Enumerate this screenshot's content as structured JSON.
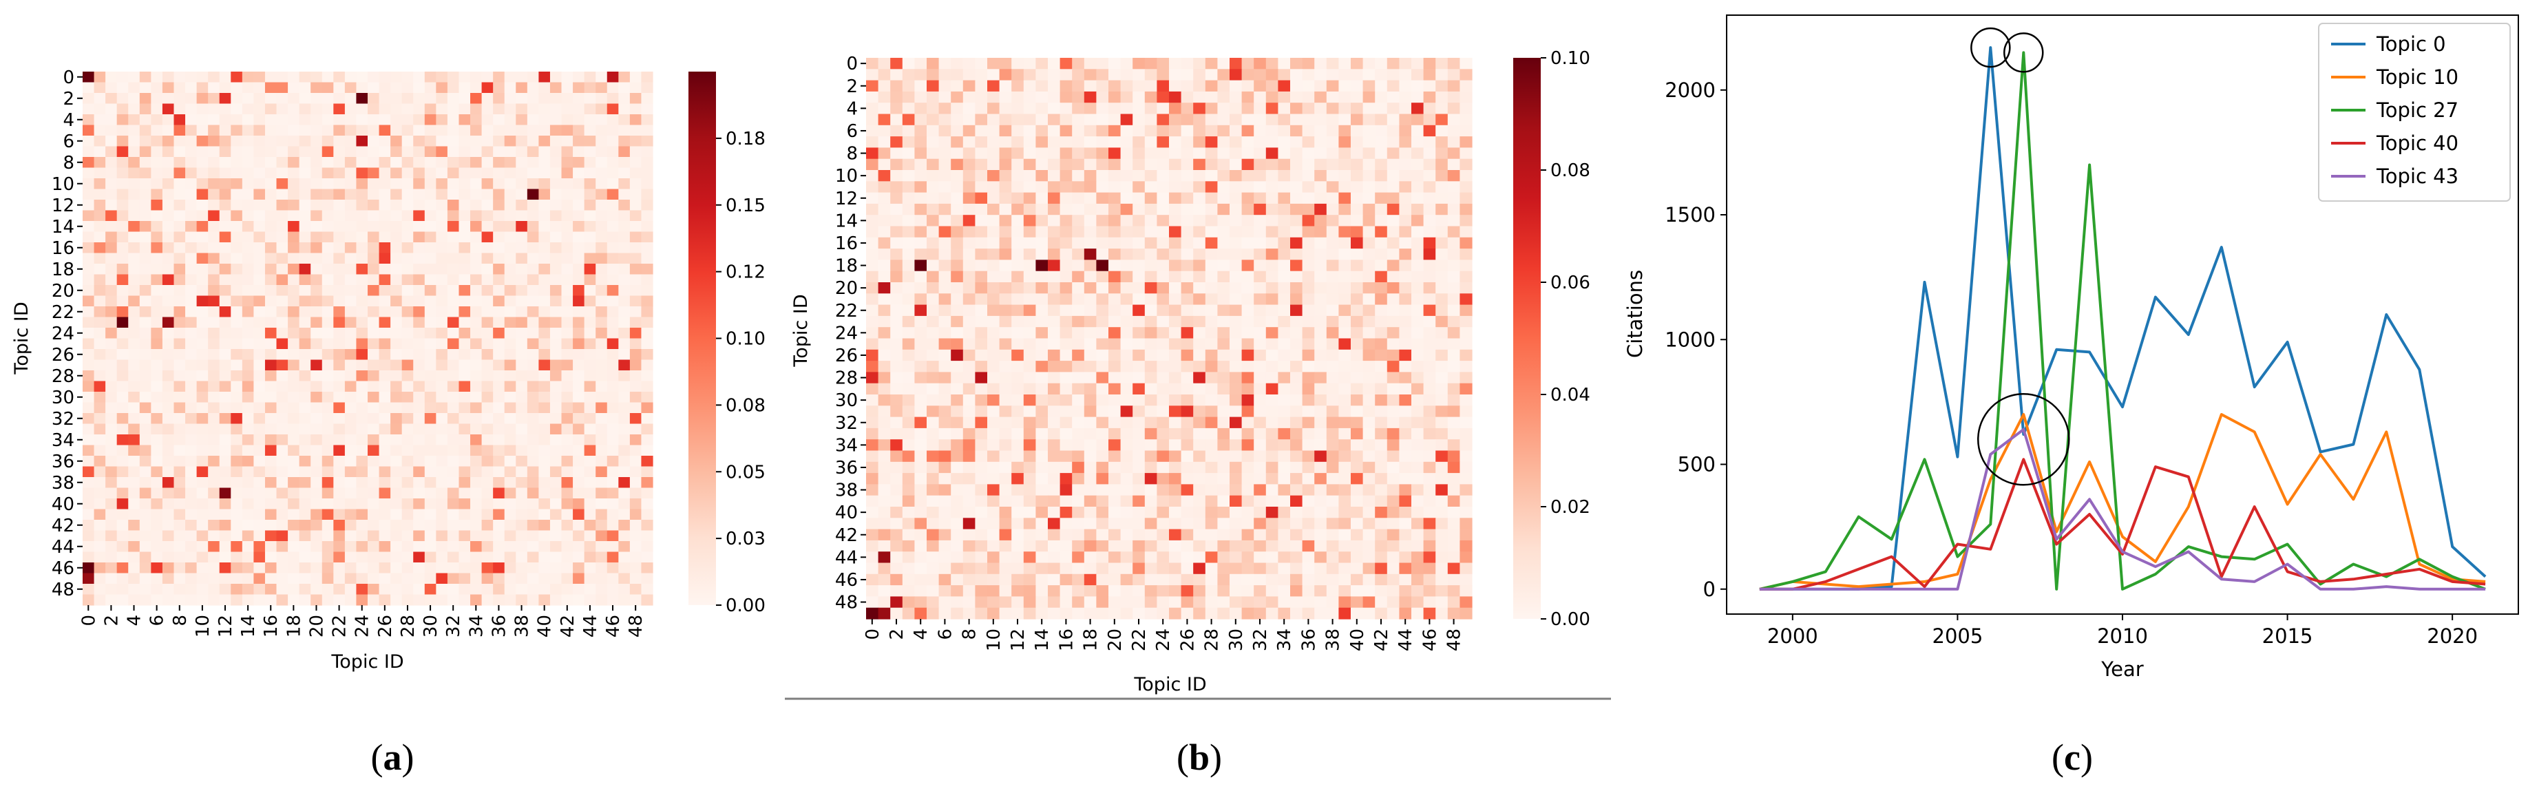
{
  "colors": {
    "heat_low": "#fff5f0",
    "heat_mid": "#fb6a4a",
    "heat_high": "#67000d",
    "axis": "#000000",
    "divider": "#7f7f7f"
  },
  "panel_a": {
    "caption_open": "(",
    "caption_letter": "a",
    "caption_close": ")",
    "xlabel": "Topic ID",
    "ylabel": "Topic ID",
    "ytick_labels": [
      "0",
      "2",
      "4",
      "6",
      "8",
      "10",
      "12",
      "14",
      "16",
      "18",
      "20",
      "22",
      "24",
      "26",
      "28",
      "30",
      "32",
      "34",
      "36",
      "38",
      "40",
      "42",
      "44",
      "46",
      "48"
    ],
    "xtick_labels": [
      "0",
      "2",
      "4",
      "6",
      "8",
      "10",
      "12",
      "14",
      "16",
      "18",
      "20",
      "22",
      "24",
      "26",
      "28",
      "30",
      "32",
      "34",
      "36",
      "38",
      "40",
      "42",
      "44",
      "46",
      "48"
    ],
    "colorbar_ticks": [
      "0.00",
      "0.03",
      "0.05",
      "0.08",
      "0.10",
      "0.12",
      "0.15",
      "0.18"
    ],
    "colorbar_values": [
      0.0,
      0.025,
      0.05,
      0.075,
      0.1,
      0.125,
      0.15,
      0.175
    ],
    "vmax": 0.2
  },
  "panel_b": {
    "caption_open": "(",
    "caption_letter": "b",
    "caption_close": ")",
    "xlabel": "Topic ID",
    "ylabel": "Topic ID",
    "ytick_labels": [
      "0",
      "2",
      "4",
      "6",
      "8",
      "10",
      "12",
      "14",
      "16",
      "18",
      "20",
      "22",
      "24",
      "26",
      "28",
      "30",
      "32",
      "34",
      "36",
      "38",
      "40",
      "42",
      "44",
      "46",
      "48"
    ],
    "xtick_labels": [
      "0",
      "2",
      "4",
      "6",
      "8",
      "10",
      "12",
      "14",
      "16",
      "18",
      "20",
      "22",
      "24",
      "26",
      "28",
      "30",
      "32",
      "34",
      "36",
      "38",
      "40",
      "42",
      "44",
      "46",
      "48"
    ],
    "colorbar_ticks": [
      "0.00",
      "0.02",
      "0.04",
      "0.06",
      "0.08",
      "0.10"
    ],
    "colorbar_values": [
      0.0,
      0.02,
      0.04,
      0.06,
      0.08,
      0.1
    ],
    "vmax": 0.1
  },
  "chart_data": [
    {
      "type": "heatmap",
      "panel": "a",
      "title": "",
      "xlabel": "Topic ID",
      "ylabel": "Topic ID",
      "rows": 50,
      "cols": 50,
      "vmin": 0.0,
      "vmax": 0.2,
      "colormap": "Reds",
      "highlight_cells": [
        {
          "row": 0,
          "col": 0,
          "value": 0.2
        },
        {
          "row": 0,
          "col": 46,
          "value": 0.16
        },
        {
          "row": 1,
          "col": 16,
          "value": 0.08
        },
        {
          "row": 1,
          "col": 17,
          "value": 0.08
        },
        {
          "row": 2,
          "col": 24,
          "value": 0.2
        },
        {
          "row": 6,
          "col": 24,
          "value": 0.16
        },
        {
          "row": 7,
          "col": 21,
          "value": 0.1
        },
        {
          "row": 11,
          "col": 39,
          "value": 0.2
        },
        {
          "row": 15,
          "col": 35,
          "value": 0.12
        },
        {
          "row": 16,
          "col": 1,
          "value": 0.08
        },
        {
          "row": 18,
          "col": 19,
          "value": 0.14
        },
        {
          "row": 21,
          "col": 11,
          "value": 0.13
        },
        {
          "row": 22,
          "col": 12,
          "value": 0.13
        },
        {
          "row": 23,
          "col": 3,
          "value": 0.2
        },
        {
          "row": 23,
          "col": 7,
          "value": 0.18
        },
        {
          "row": 35,
          "col": 16,
          "value": 0.12
        },
        {
          "row": 39,
          "col": 12,
          "value": 0.19
        },
        {
          "row": 46,
          "col": 0,
          "value": 0.2
        },
        {
          "row": 47,
          "col": 0,
          "value": 0.18
        }
      ]
    },
    {
      "type": "heatmap",
      "panel": "b",
      "title": "",
      "xlabel": "Topic ID",
      "ylabel": "Topic ID",
      "rows": 50,
      "cols": 50,
      "vmin": 0.0,
      "vmax": 0.1,
      "colormap": "Reds",
      "highlight_cells": [
        {
          "row": 18,
          "col": 4,
          "value": 0.1
        },
        {
          "row": 18,
          "col": 14,
          "value": 0.1
        },
        {
          "row": 18,
          "col": 19,
          "value": 0.1
        },
        {
          "row": 17,
          "col": 18,
          "value": 0.09
        },
        {
          "row": 20,
          "col": 1,
          "value": 0.08
        },
        {
          "row": 49,
          "col": 0,
          "value": 0.1
        },
        {
          "row": 49,
          "col": 1,
          "value": 0.09
        },
        {
          "row": 48,
          "col": 2,
          "value": 0.08
        },
        {
          "row": 26,
          "col": 7,
          "value": 0.08
        },
        {
          "row": 28,
          "col": 9,
          "value": 0.08
        },
        {
          "row": 28,
          "col": 27,
          "value": 0.07
        },
        {
          "row": 35,
          "col": 37,
          "value": 0.07
        },
        {
          "row": 41,
          "col": 8,
          "value": 0.08
        },
        {
          "row": 44,
          "col": 1,
          "value": 0.09
        }
      ]
    },
    {
      "type": "line",
      "panel": "c",
      "title": "",
      "xlabel": "Year",
      "ylabel": "Citations",
      "xlim": [
        1998,
        2022
      ],
      "ylim": [
        -100,
        2300
      ],
      "xticks": [
        2000,
        2005,
        2010,
        2015,
        2020
      ],
      "yticks": [
        0,
        500,
        1000,
        1500,
        2000
      ],
      "legend_position": "top-right",
      "grid": false,
      "x": [
        1999,
        2000,
        2001,
        2002,
        2003,
        2004,
        2005,
        2006,
        2007,
        2008,
        2009,
        2010,
        2011,
        2012,
        2013,
        2014,
        2015,
        2016,
        2017,
        2018,
        2019,
        2020,
        2021
      ],
      "series": [
        {
          "name": "Topic 0",
          "color": "#1f77b4",
          "values": [
            0,
            0,
            0,
            0,
            10,
            1230,
            530,
            2170,
            620,
            960,
            950,
            730,
            1170,
            1020,
            1370,
            810,
            990,
            550,
            580,
            1100,
            880,
            170,
            50
          ]
        },
        {
          "name": "Topic 10",
          "color": "#ff7f0e",
          "values": [
            0,
            30,
            20,
            10,
            20,
            30,
            60,
            440,
            700,
            230,
            510,
            210,
            110,
            330,
            700,
            630,
            340,
            540,
            360,
            630,
            100,
            40,
            30
          ]
        },
        {
          "name": "Topic 27",
          "color": "#2ca02c",
          "values": [
            0,
            30,
            70,
            290,
            200,
            520,
            130,
            260,
            2150,
            0,
            1700,
            0,
            60,
            170,
            130,
            120,
            180,
            20,
            100,
            50,
            120,
            50,
            0
          ]
        },
        {
          "name": "Topic 40",
          "color": "#d62728",
          "values": [
            0,
            0,
            30,
            80,
            130,
            10,
            180,
            160,
            520,
            180,
            300,
            140,
            490,
            450,
            50,
            330,
            70,
            30,
            40,
            60,
            80,
            30,
            20
          ]
        },
        {
          "name": "Topic 43",
          "color": "#9467bd",
          "values": [
            0,
            0,
            0,
            0,
            0,
            0,
            0,
            540,
            640,
            200,
            360,
            150,
            90,
            150,
            40,
            30,
            100,
            0,
            0,
            10,
            0,
            0,
            0
          ]
        }
      ],
      "annotations": [
        {
          "shape": "circle",
          "year": 2006,
          "citations": 2170
        },
        {
          "shape": "circle",
          "year": 2007,
          "citations": 2150
        },
        {
          "shape": "circle",
          "year": 2007,
          "citations": 600
        }
      ]
    }
  ],
  "panel_c": {
    "caption_open": "(",
    "caption_letter": "c",
    "caption_close": ")",
    "xlabel": "Year",
    "ylabel": "Citations",
    "xtick_labels": [
      "2000",
      "2005",
      "2010",
      "2015",
      "2020"
    ],
    "ytick_labels": [
      "0",
      "500",
      "1000",
      "1500",
      "2000"
    ]
  }
}
